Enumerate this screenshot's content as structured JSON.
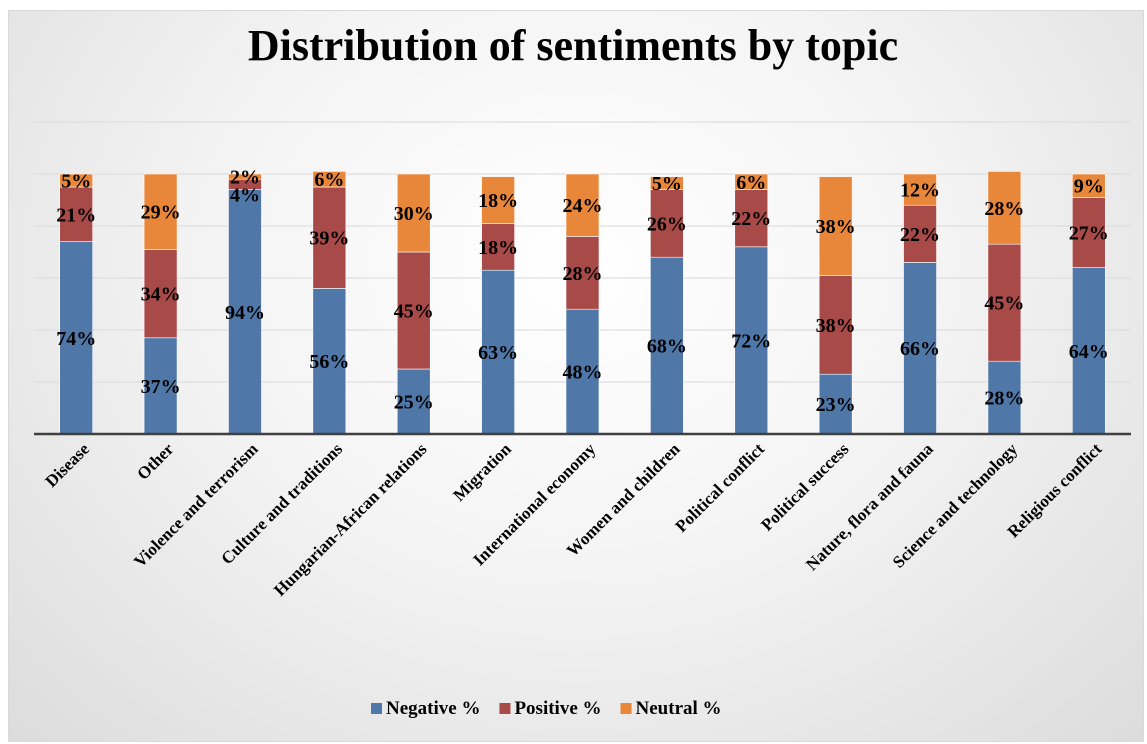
{
  "chart_data": {
    "type": "bar",
    "stacked": true,
    "title": "Distribution of sentiments by topic",
    "categories": [
      "Disease",
      "Other",
      "Violence and terrorism",
      "Culture and traditions",
      "Hungarian-African relations",
      "Migration",
      "International economy",
      "Women and children",
      "Political conflict",
      "Political success",
      "Nature, flora and fauna",
      "Science and technology",
      "Religious conflict"
    ],
    "series": [
      {
        "name": "Negative %",
        "color": "#4f77a8",
        "values": [
          74,
          37,
          94,
          56,
          25,
          63,
          48,
          68,
          72,
          23,
          66,
          28,
          64
        ]
      },
      {
        "name": "Positive %",
        "color": "#a74a48",
        "values": [
          21,
          34,
          4,
          39,
          45,
          18,
          28,
          26,
          22,
          38,
          22,
          45,
          27
        ]
      },
      {
        "name": "Neutral %",
        "color": "#e8863a",
        "values": [
          5,
          29,
          2,
          6,
          30,
          18,
          24,
          5,
          6,
          38,
          12,
          28,
          9
        ]
      }
    ],
    "labels": [
      [
        "74%",
        "37%",
        "94%",
        "56%",
        "25%",
        "63%",
        "48%",
        "68%",
        "72%",
        "23%",
        "66%",
        "28%",
        "64%"
      ],
      [
        "21%",
        "34%",
        "4%",
        "39%",
        "45%",
        "18%",
        "28%",
        "26%",
        "22%",
        "38%",
        "22%",
        "45%",
        "27%"
      ],
      [
        "5%",
        "29%",
        "2%",
        "6%",
        "30%",
        "18%",
        "24%",
        "5%",
        "6%",
        "38%",
        "12%",
        "28%",
        "9%"
      ]
    ],
    "ylim": [
      0,
      120
    ],
    "yaxis_visible": false,
    "grid": true,
    "legend_position": "bottom"
  }
}
